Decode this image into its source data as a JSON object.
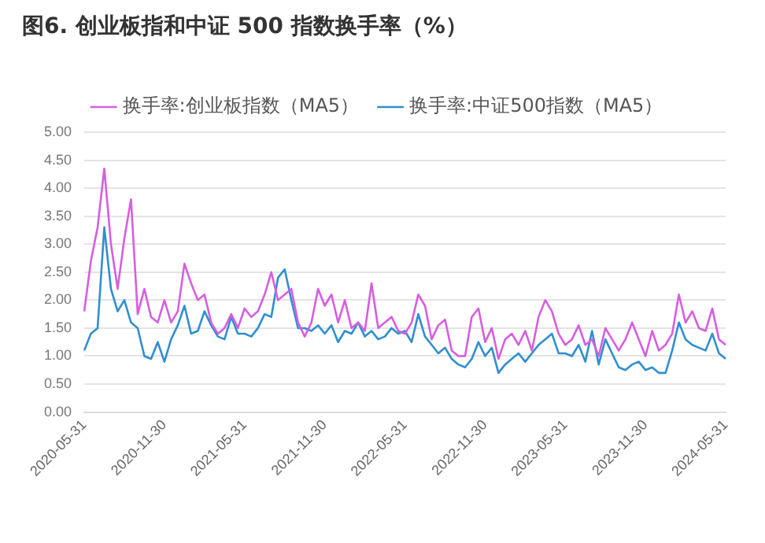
{
  "chart_data": {
    "type": "line",
    "title": "图6. 创业板指和中证 500 指数换手率（%）",
    "categories": [
      "2020-05-31",
      null,
      null,
      null,
      null,
      null,
      null,
      null,
      null,
      null,
      null,
      null,
      "2020-11-30",
      null,
      null,
      null,
      null,
      null,
      null,
      null,
      null,
      null,
      null,
      null,
      "2021-05-31",
      null,
      null,
      null,
      null,
      null,
      null,
      null,
      null,
      null,
      null,
      null,
      "2021-11-30",
      null,
      null,
      null,
      null,
      null,
      null,
      null,
      null,
      null,
      null,
      null,
      "2022-05-31",
      null,
      null,
      null,
      null,
      null,
      null,
      null,
      null,
      null,
      null,
      null,
      "2022-11-30",
      null,
      null,
      null,
      null,
      null,
      null,
      null,
      null,
      null,
      null,
      null,
      "2023-05-31",
      null,
      null,
      null,
      null,
      null,
      null,
      null,
      null,
      null,
      null,
      null,
      "2023-11-30",
      null,
      null,
      null,
      null,
      null,
      null,
      null,
      null,
      null,
      null,
      null,
      "2024-05-31"
    ],
    "series": [
      {
        "name": "换手率:创业板指数（MA5）",
        "color": "#d65ee0",
        "values": [
          1.8,
          2.7,
          3.3,
          4.35,
          3.0,
          2.2,
          3.1,
          3.8,
          1.75,
          2.2,
          1.7,
          1.6,
          2.0,
          1.6,
          1.8,
          2.65,
          2.3,
          2.0,
          2.1,
          1.6,
          1.4,
          1.5,
          1.75,
          1.5,
          1.85,
          1.7,
          1.8,
          2.1,
          2.5,
          2.0,
          2.1,
          2.2,
          1.6,
          1.35,
          1.6,
          2.2,
          1.9,
          2.1,
          1.6,
          2.0,
          1.5,
          1.6,
          1.45,
          2.3,
          1.5,
          1.6,
          1.7,
          1.45,
          1.4,
          1.6,
          2.1,
          1.9,
          1.3,
          1.55,
          1.65,
          1.1,
          1.0,
          1.0,
          1.7,
          1.85,
          1.25,
          1.5,
          0.95,
          1.3,
          1.4,
          1.2,
          1.45,
          1.1,
          1.7,
          2.0,
          1.8,
          1.4,
          1.2,
          1.3,
          1.55,
          1.2,
          1.3,
          1.0,
          1.5,
          1.3,
          1.1,
          1.3,
          1.6,
          1.3,
          1.0,
          1.45,
          1.1,
          1.2,
          1.4,
          2.1,
          1.6,
          1.8,
          1.5,
          1.45,
          1.85,
          1.3,
          1.2
        ]
      },
      {
        "name": "换手率:中证500指数（MA5）",
        "color": "#2f8fd0",
        "values": [
          1.1,
          1.4,
          1.5,
          3.3,
          2.2,
          1.8,
          2.0,
          1.6,
          1.5,
          1.0,
          0.95,
          1.25,
          0.9,
          1.3,
          1.55,
          1.9,
          1.4,
          1.45,
          1.8,
          1.55,
          1.35,
          1.3,
          1.7,
          1.4,
          1.4,
          1.35,
          1.5,
          1.75,
          1.7,
          2.4,
          2.55,
          2.0,
          1.5,
          1.5,
          1.45,
          1.55,
          1.4,
          1.55,
          1.25,
          1.45,
          1.4,
          1.6,
          1.35,
          1.45,
          1.3,
          1.35,
          1.5,
          1.4,
          1.45,
          1.25,
          1.75,
          1.35,
          1.2,
          1.05,
          1.15,
          0.95,
          0.85,
          0.8,
          0.95,
          1.25,
          1.0,
          1.15,
          0.7,
          0.85,
          0.95,
          1.05,
          0.9,
          1.05,
          1.2,
          1.3,
          1.4,
          1.05,
          1.05,
          1.0,
          1.2,
          0.9,
          1.45,
          0.85,
          1.3,
          1.05,
          0.8,
          0.75,
          0.85,
          0.9,
          0.75,
          0.8,
          0.7,
          0.7,
          1.1,
          1.6,
          1.3,
          1.2,
          1.15,
          1.1,
          1.4,
          1.05,
          0.95
        ]
      }
    ],
    "ylim": [
      0,
      5
    ],
    "yticks": [
      {
        "value": 0,
        "label": "0.00"
      },
      {
        "value": 0.5,
        "label": "0.50"
      },
      {
        "value": 1,
        "label": "1.00"
      },
      {
        "value": 1.5,
        "label": "1.50"
      },
      {
        "value": 2,
        "label": "2.00"
      },
      {
        "value": 2.5,
        "label": "2.50"
      },
      {
        "value": 3,
        "label": "3.00"
      },
      {
        "value": 3.5,
        "label": "3.50"
      },
      {
        "value": 4,
        "label": "4.00"
      },
      {
        "value": 4.5,
        "label": "4.50"
      },
      {
        "value": 5,
        "label": "5.00"
      }
    ],
    "grid": "y",
    "legend": "top",
    "marker": "none",
    "line_style": "solid"
  }
}
